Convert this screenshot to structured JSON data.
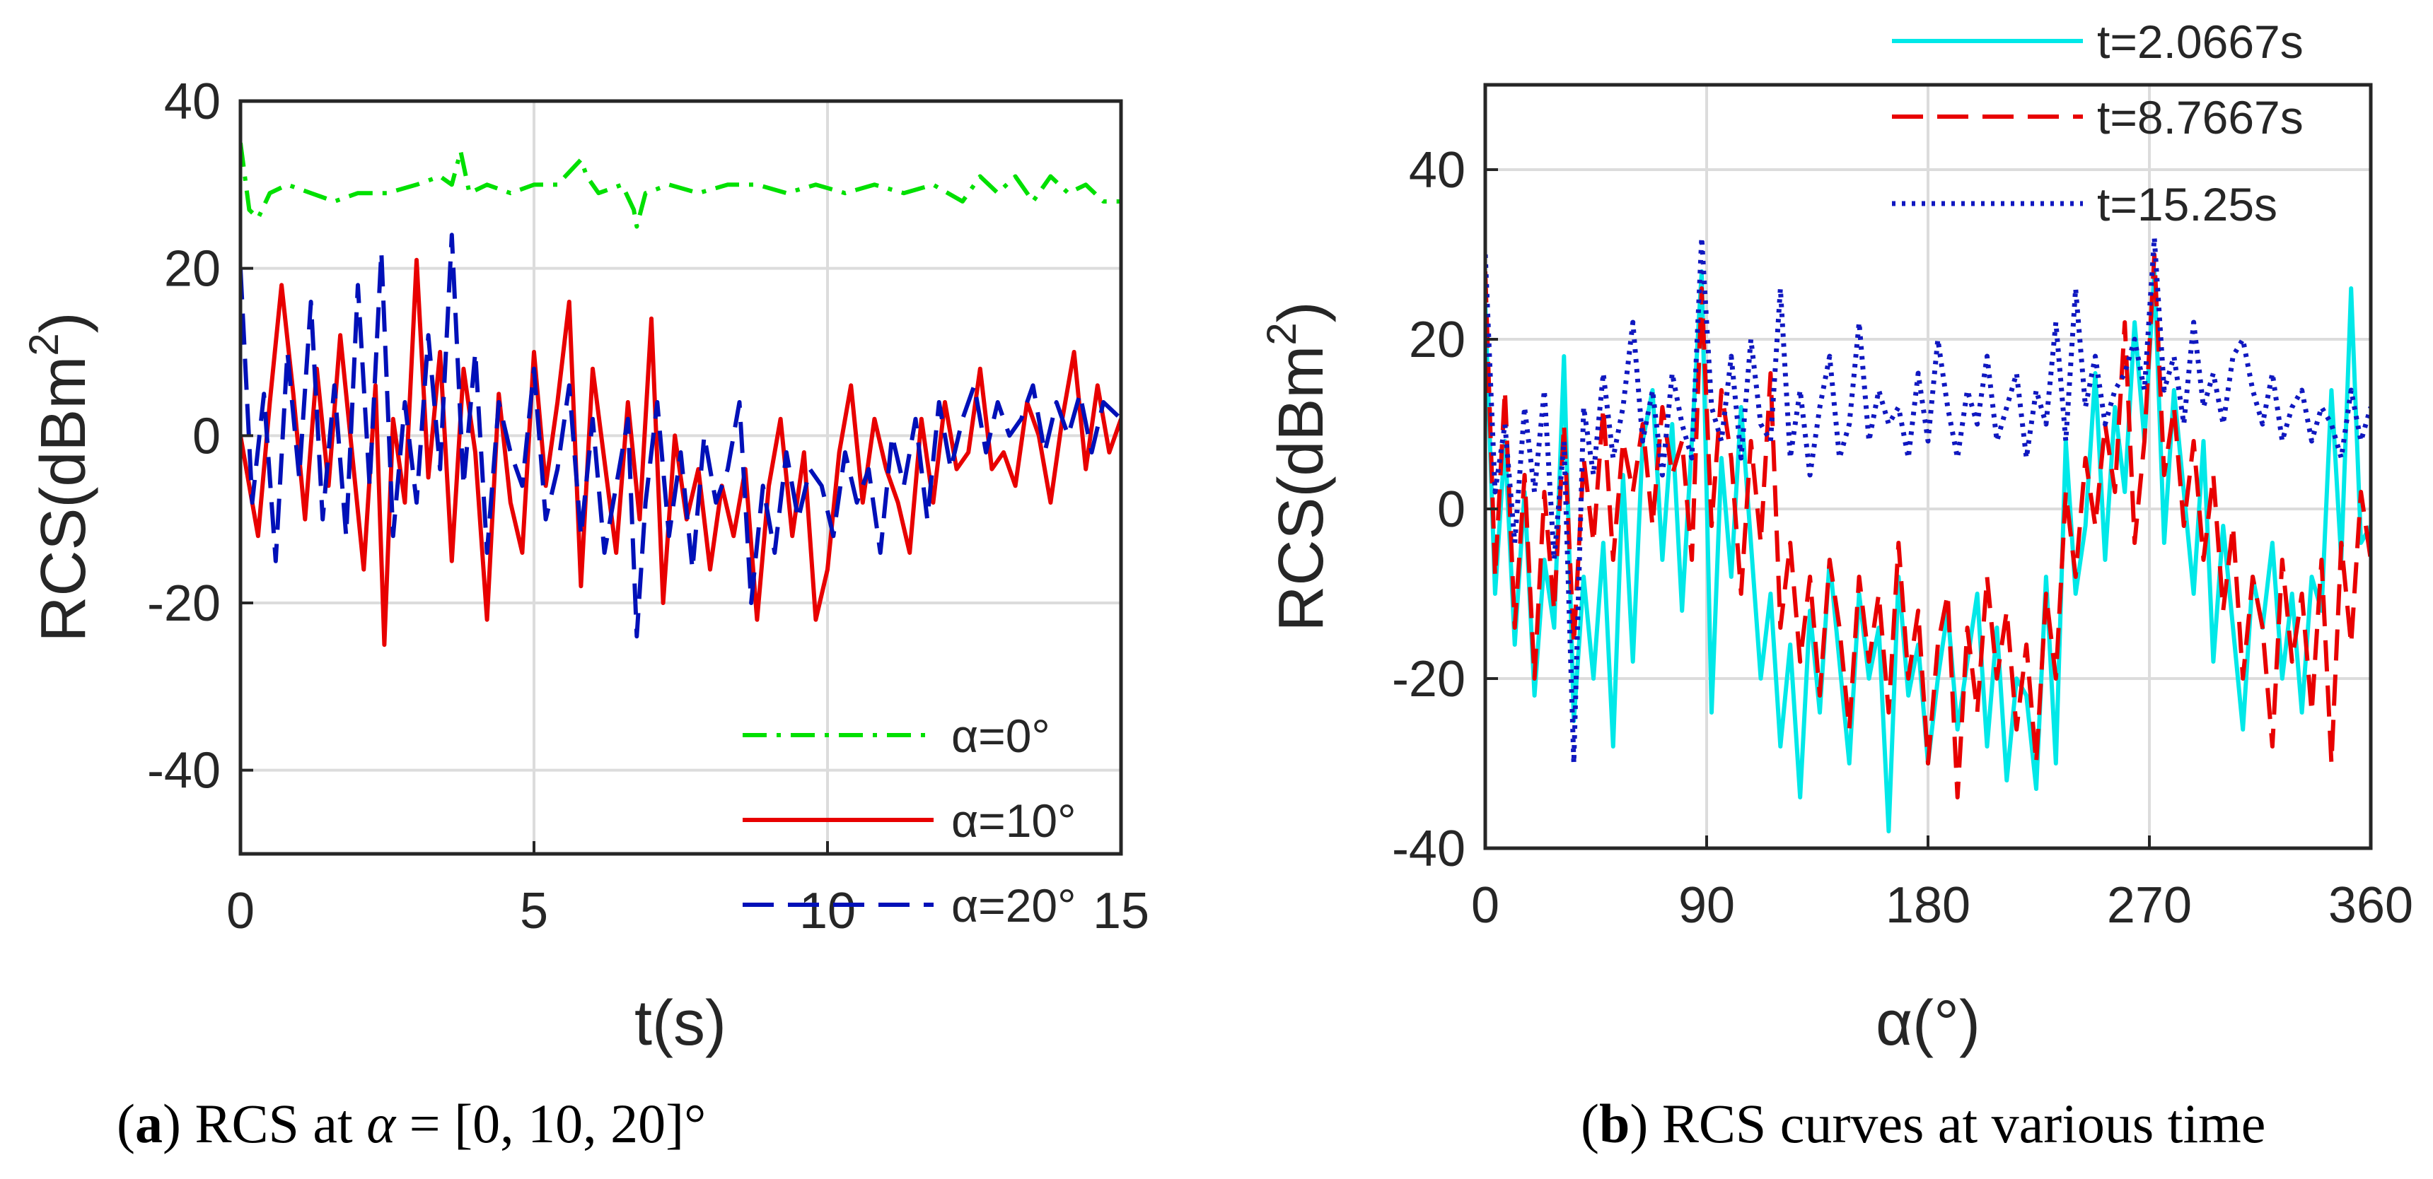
{
  "chart_data": [
    {
      "type": "line",
      "panel": "a",
      "title": "",
      "xlabel": "t(s)",
      "ylabel": "RCS(dBm",
      "ylabel_sup": "2",
      "ylabel_close": ")",
      "xlim": [
        0,
        15
      ],
      "ylim": [
        -50,
        40
      ],
      "xticks": [
        0,
        5,
        10,
        15
      ],
      "xtick_labels": [
        "0",
        "5",
        "10",
        "15"
      ],
      "yticks": [
        -40,
        -20,
        0,
        20,
        40
      ],
      "ytick_labels": [
        "-40",
        "-20",
        "0",
        "20",
        "40"
      ],
      "grid": true,
      "legend_position": "bottom-right",
      "series": [
        {
          "name": "α=0°",
          "color": "#00e000",
          "dash": "dashdot",
          "x": [
            0,
            0.15,
            0.3,
            0.5,
            0.8,
            1.2,
            1.6,
            2.0,
            2.5,
            3.0,
            3.4,
            3.6,
            3.75,
            3.9,
            4.2,
            4.6,
            5.0,
            5.4,
            5.8,
            5.9,
            6.1,
            6.5,
            6.7,
            6.75,
            6.9,
            7.3,
            7.8,
            8.3,
            8.8,
            9.3,
            9.8,
            10.3,
            10.8,
            11.3,
            11.8,
            12.3,
            12.6,
            12.9,
            13.2,
            13.5,
            13.8,
            14.1,
            14.4,
            14.7,
            15.0
          ],
          "y": [
            35,
            27,
            26,
            29,
            30,
            29,
            28,
            29,
            29,
            30,
            31,
            30,
            34,
            29,
            30,
            29,
            30,
            30,
            33,
            31,
            29,
            30,
            27,
            25,
            29,
            30,
            29,
            30,
            30,
            29,
            30,
            29,
            30,
            29,
            30,
            28,
            31,
            29,
            31,
            28,
            31,
            29,
            30,
            28,
            28
          ]
        },
        {
          "name": "α=10°",
          "color": "#e80000",
          "dash": "solid",
          "x": [
            0,
            0.3,
            0.5,
            0.7,
            0.9,
            1.1,
            1.3,
            1.5,
            1.7,
            1.9,
            2.1,
            2.3,
            2.45,
            2.6,
            2.8,
            3.0,
            3.2,
            3.4,
            3.6,
            3.8,
            4.0,
            4.2,
            4.4,
            4.6,
            4.8,
            5.0,
            5.2,
            5.4,
            5.6,
            5.8,
            6.0,
            6.2,
            6.4,
            6.6,
            6.8,
            7.0,
            7.2,
            7.4,
            7.6,
            7.8,
            8.0,
            8.2,
            8.4,
            8.6,
            8.8,
            9.0,
            9.2,
            9.4,
            9.6,
            9.8,
            10.0,
            10.2,
            10.4,
            10.6,
            10.8,
            11.0,
            11.2,
            11.4,
            11.6,
            11.8,
            12.0,
            12.2,
            12.4,
            12.6,
            12.8,
            13.0,
            13.2,
            13.4,
            13.6,
            13.8,
            14.0,
            14.2,
            14.4,
            14.6,
            14.8,
            15.0
          ],
          "y": [
            0,
            -12,
            4,
            18,
            5,
            -10,
            8,
            -6,
            12,
            -2,
            -16,
            6,
            -25,
            2,
            -8,
            21,
            -5,
            10,
            -15,
            8,
            -2,
            -22,
            5,
            -8,
            -14,
            10,
            -6,
            4,
            16,
            -18,
            8,
            -3,
            -14,
            4,
            -10,
            14,
            -20,
            0,
            -10,
            -4,
            -16,
            -6,
            -12,
            -4,
            -22,
            -6,
            2,
            -12,
            -2,
            -22,
            -16,
            -2,
            6,
            -8,
            2,
            -4,
            -8,
            -14,
            2,
            -8,
            4,
            -4,
            -2,
            8,
            -4,
            -2,
            -6,
            4,
            0,
            -8,
            2,
            10,
            -4,
            6,
            -2,
            2
          ]
        },
        {
          "name": "α=20°",
          "color": "#0010b8",
          "dash": "dashed",
          "x": [
            0,
            0.2,
            0.4,
            0.6,
            0.8,
            1.0,
            1.2,
            1.4,
            1.6,
            1.8,
            2.0,
            2.2,
            2.4,
            2.6,
            2.8,
            3.0,
            3.2,
            3.4,
            3.6,
            3.8,
            4.0,
            4.2,
            4.4,
            4.6,
            4.8,
            5.0,
            5.2,
            5.4,
            5.6,
            5.8,
            6.0,
            6.2,
            6.4,
            6.6,
            6.75,
            6.9,
            7.1,
            7.3,
            7.5,
            7.7,
            7.9,
            8.1,
            8.3,
            8.5,
            8.7,
            8.9,
            9.1,
            9.3,
            9.5,
            9.7,
            9.9,
            10.1,
            10.3,
            10.5,
            10.7,
            10.9,
            11.1,
            11.3,
            11.5,
            11.7,
            11.9,
            12.1,
            12.3,
            12.5,
            12.7,
            12.9,
            13.1,
            13.3,
            13.5,
            13.7,
            13.9,
            14.1,
            14.3,
            14.5,
            14.7,
            15.0
          ],
          "y": [
            20,
            -8,
            5,
            -15,
            10,
            -5,
            16,
            -10,
            6,
            -12,
            18,
            -6,
            22,
            -12,
            4,
            -8,
            12,
            -4,
            24,
            -6,
            10,
            -14,
            4,
            -2,
            -6,
            8,
            -10,
            -4,
            6,
            -12,
            2,
            -14,
            -6,
            2,
            -24,
            -8,
            4,
            -12,
            -2,
            -16,
            0,
            -8,
            -4,
            4,
            -20,
            -6,
            -14,
            -2,
            -10,
            -4,
            -6,
            -12,
            -2,
            -8,
            -4,
            -14,
            0,
            -6,
            2,
            -10,
            4,
            -4,
            2,
            6,
            -2,
            4,
            0,
            2,
            6,
            -2,
            4,
            0,
            5,
            -2,
            4,
            2
          ]
        }
      ]
    },
    {
      "type": "line",
      "panel": "b",
      "title": "",
      "xlabel": "α(°)",
      "ylabel": "RCS(dBm",
      "ylabel_sup": "2",
      "ylabel_close": ")",
      "xlim": [
        0,
        360
      ],
      "ylim": [
        -40,
        50
      ],
      "xticks": [
        0,
        90,
        180,
        270,
        360
      ],
      "xtick_labels": [
        "0",
        "90",
        "180",
        "270",
        "360"
      ],
      "yticks": [
        -40,
        -20,
        0,
        20,
        40
      ],
      "ytick_labels": [
        "-40",
        "-20",
        "0",
        "20",
        "40"
      ],
      "grid": true,
      "legend_position": "top-right",
      "series": [
        {
          "name": "t=2.0667s",
          "color": "#00e8e8",
          "dash": "solid",
          "x": [
            0,
            4,
            8,
            12,
            16,
            20,
            24,
            28,
            32,
            36,
            40,
            44,
            48,
            52,
            56,
            60,
            64,
            68,
            72,
            76,
            80,
            84,
            88,
            92,
            96,
            100,
            104,
            108,
            112,
            116,
            120,
            124,
            128,
            132,
            136,
            140,
            144,
            148,
            152,
            156,
            160,
            164,
            168,
            172,
            176,
            180,
            184,
            188,
            192,
            196,
            200,
            204,
            208,
            212,
            216,
            220,
            224,
            228,
            232,
            236,
            240,
            244,
            248,
            252,
            256,
            260,
            264,
            268,
            272,
            276,
            280,
            284,
            288,
            292,
            296,
            300,
            304,
            308,
            312,
            316,
            320,
            324,
            328,
            332,
            336,
            340,
            344,
            348,
            352,
            356,
            360
          ],
          "y": [
            24,
            -10,
            8,
            -16,
            2,
            -22,
            -6,
            -14,
            18,
            -25,
            -8,
            -20,
            -4,
            -28,
            4,
            -18,
            8,
            14,
            -6,
            10,
            -12,
            8,
            28,
            -24,
            6,
            -8,
            12,
            -4,
            -20,
            -10,
            -28,
            -16,
            -34,
            -12,
            -24,
            -6,
            -18,
            -30,
            -10,
            -20,
            -14,
            -38,
            -8,
            -22,
            -16,
            -30,
            -20,
            -12,
            -26,
            -18,
            -10,
            -28,
            -14,
            -32,
            -20,
            -22,
            -33,
            -8,
            -30,
            8,
            -10,
            -2,
            16,
            -6,
            12,
            2,
            22,
            8,
            28,
            -4,
            14,
            2,
            -10,
            8,
            -18,
            -2,
            -14,
            -26,
            -8,
            -14,
            -4,
            -20,
            -10,
            -24,
            -8,
            -12,
            14,
            -6,
            26,
            -4,
            -2
          ]
        },
        {
          "name": "t=8.7667s",
          "color": "#e80000",
          "dash": "dashed",
          "x": [
            0,
            4,
            8,
            12,
            16,
            20,
            24,
            28,
            32,
            36,
            40,
            44,
            48,
            52,
            56,
            60,
            64,
            68,
            72,
            76,
            80,
            84,
            88,
            92,
            96,
            100,
            104,
            108,
            112,
            116,
            120,
            124,
            128,
            132,
            136,
            140,
            144,
            148,
            152,
            156,
            160,
            164,
            168,
            172,
            176,
            180,
            184,
            188,
            192,
            196,
            200,
            204,
            208,
            212,
            216,
            220,
            224,
            228,
            232,
            236,
            240,
            244,
            248,
            252,
            256,
            260,
            264,
            268,
            272,
            276,
            280,
            284,
            288,
            292,
            296,
            300,
            304,
            308,
            312,
            316,
            320,
            324,
            328,
            332,
            336,
            340,
            344,
            348,
            352,
            356,
            360
          ],
          "y": [
            28,
            -8,
            14,
            -14,
            4,
            -20,
            2,
            -12,
            10,
            -16,
            6,
            -4,
            12,
            -6,
            8,
            2,
            10,
            -2,
            12,
            4,
            8,
            -6,
            26,
            -2,
            14,
            6,
            -10,
            8,
            -4,
            16,
            -14,
            -4,
            -18,
            -8,
            -22,
            -6,
            -14,
            -26,
            -8,
            -18,
            -10,
            -24,
            -4,
            -20,
            -12,
            -30,
            -16,
            -10,
            -34,
            -14,
            -24,
            -8,
            -20,
            -12,
            -26,
            -16,
            -30,
            -10,
            -20,
            2,
            -8,
            6,
            -2,
            10,
            2,
            22,
            -4,
            8,
            30,
            4,
            12,
            -2,
            8,
            -6,
            4,
            -12,
            -2,
            -20,
            -8,
            -14,
            -28,
            -6,
            -18,
            -10,
            -24,
            -6,
            -30,
            -4,
            -16,
            2,
            -6
          ]
        },
        {
          "name": "t=15.25s",
          "color": "#1018c0",
          "dash": "dotted",
          "x": [
            0,
            4,
            8,
            12,
            16,
            20,
            24,
            28,
            32,
            36,
            40,
            44,
            48,
            52,
            56,
            60,
            64,
            68,
            72,
            76,
            80,
            84,
            88,
            92,
            96,
            100,
            104,
            108,
            112,
            116,
            120,
            124,
            128,
            132,
            136,
            140,
            144,
            148,
            152,
            156,
            160,
            164,
            168,
            172,
            176,
            180,
            184,
            188,
            192,
            196,
            200,
            204,
            208,
            212,
            216,
            220,
            224,
            228,
            232,
            236,
            240,
            244,
            248,
            252,
            256,
            260,
            264,
            268,
            272,
            276,
            280,
            284,
            288,
            292,
            296,
            300,
            304,
            308,
            312,
            316,
            320,
            324,
            328,
            332,
            336,
            340,
            344,
            348,
            352,
            356,
            360
          ],
          "y": [
            30,
            2,
            10,
            -4,
            12,
            2,
            14,
            -6,
            8,
            -30,
            12,
            4,
            16,
            6,
            12,
            22,
            8,
            14,
            4,
            16,
            10,
            6,
            32,
            12,
            8,
            18,
            6,
            20,
            10,
            8,
            26,
            6,
            14,
            4,
            12,
            18,
            6,
            10,
            22,
            8,
            14,
            10,
            12,
            6,
            16,
            8,
            20,
            12,
            6,
            14,
            10,
            18,
            8,
            12,
            16,
            6,
            14,
            10,
            22,
            8,
            26,
            12,
            18,
            10,
            14,
            16,
            20,
            14,
            32,
            14,
            18,
            10,
            22,
            12,
            16,
            10,
            18,
            20,
            14,
            10,
            16,
            8,
            12,
            14,
            8,
            12,
            10,
            6,
            14,
            8,
            12
          ]
        }
      ]
    }
  ],
  "captions": [
    {
      "letter": "a",
      "text_before": " RCS at ",
      "alpha": "α",
      "text_after": " = [0, 10, 20]°"
    },
    {
      "letter": "b",
      "text_before": " RCS curves at various time"
    }
  ]
}
